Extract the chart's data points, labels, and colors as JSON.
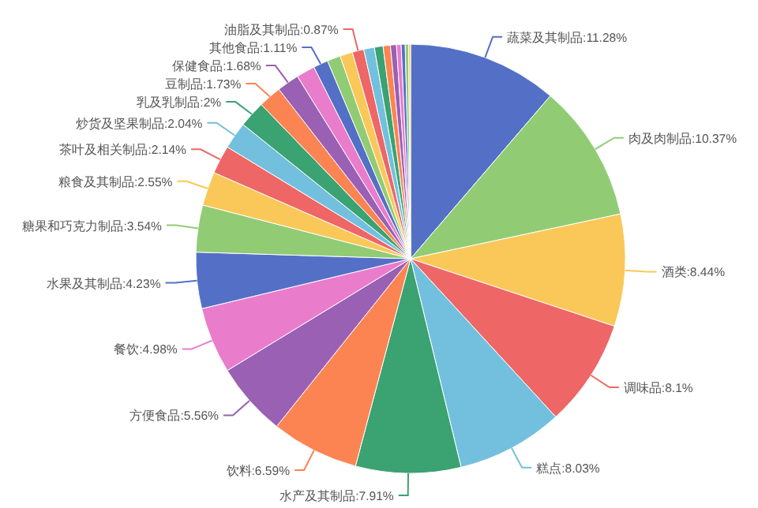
{
  "chart_data": {
    "type": "pie",
    "categories": [
      "蔬菜及其制品",
      "肉及肉制品",
      "酒类",
      "调味品",
      "糕点",
      "水产及其制品",
      "饮料",
      "方便食品",
      "餐饮",
      "水果及其制品",
      "糖果和巧克力制品",
      "粮食及其制品",
      "茶叶及相关制品",
      "炒货及坚果制品",
      "乳及乳制品",
      "豆制品",
      "保健食品",
      null,
      "其他食品",
      null,
      null,
      "油脂及其制品",
      null,
      null,
      null,
      null,
      null,
      null,
      null,
      null
    ],
    "values": [
      11.28,
      10.37,
      8.44,
      8.1,
      8.03,
      7.91,
      6.59,
      5.56,
      4.98,
      4.23,
      3.54,
      2.55,
      2.14,
      2.04,
      2,
      1.73,
      1.68,
      1.4,
      1.11,
      1.0,
      0.95,
      0.87,
      0.8,
      0.65,
      0.55,
      0.45,
      0.35,
      0.3,
      0.25,
      0.15
    ],
    "value_labels": [
      "11.28%",
      "10.37%",
      "8.44%",
      "8.1%",
      "8.03%",
      "7.91%",
      "6.59%",
      "5.56%",
      "4.98%",
      "4.23%",
      "3.54%",
      "2.55%",
      "2.14%",
      "2.04%",
      "2%",
      "1.73%",
      "1.68%",
      null,
      "1.11%",
      null,
      null,
      "0.87%",
      null,
      null,
      null,
      null,
      null,
      null,
      null,
      null
    ],
    "colors": [
      "#5470c6",
      "#91cc75",
      "#fac858",
      "#ee6666",
      "#73c0de",
      "#3ba272",
      "#fc8452",
      "#9a60b4",
      "#ea7ccc",
      "#5470c6",
      "#91cc75",
      "#fac858",
      "#ee6666",
      "#73c0de",
      "#3ba272",
      "#fc8452",
      "#9a60b4",
      "#ea7ccc",
      "#5470c6",
      "#91cc75",
      "#fac858",
      "#ee6666",
      "#73c0de",
      "#3ba272",
      "#fc8452",
      "#9a60b4",
      "#ea7ccc",
      "#5470c6",
      "#91cc75",
      "#fac858"
    ]
  }
}
